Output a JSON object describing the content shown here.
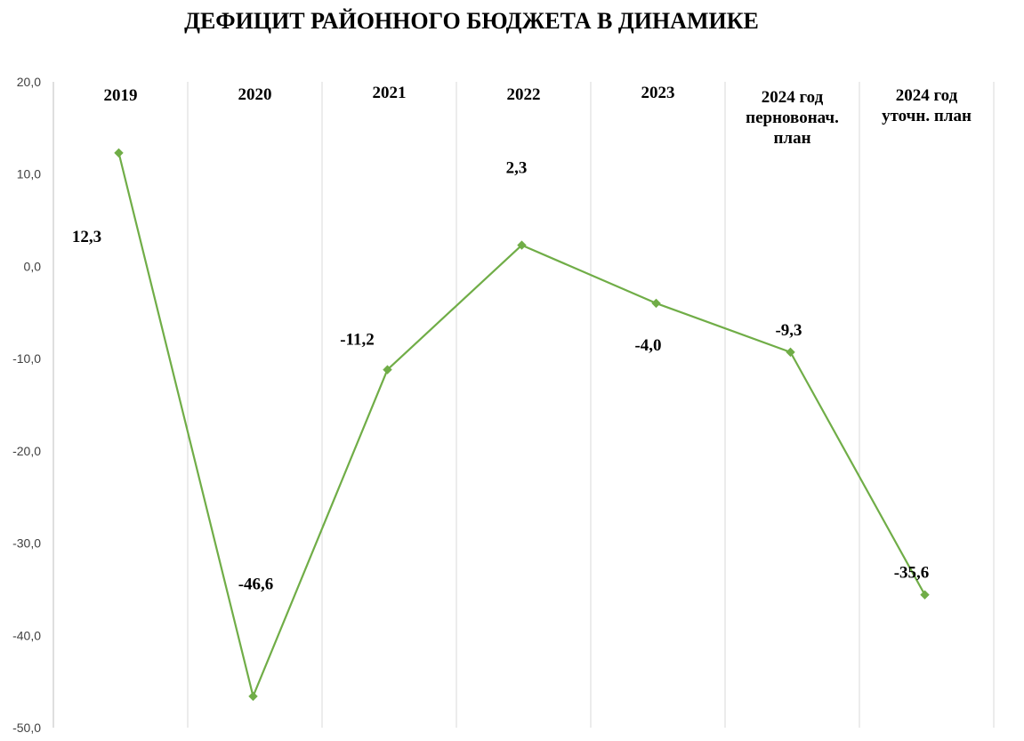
{
  "chart_data": {
    "type": "line",
    "title": "ДЕФИЦИТ РАЙОННОГО БЮДЖЕТА В ДИНАМИКЕ",
    "categories": [
      [
        "2019"
      ],
      [
        "2020"
      ],
      [
        "2021"
      ],
      [
        "2022"
      ],
      [
        "2023"
      ],
      [
        "2024 год",
        "перновонач.",
        "план"
      ],
      [
        "2024 год",
        "уточн. план"
      ]
    ],
    "series": [
      {
        "values": [
          12.3,
          -46.6,
          -11.2,
          2.3,
          -4.0,
          -9.3,
          -35.6
        ],
        "data_labels": [
          "12,3",
          "-46,6",
          "-11,2",
          "2,3",
          "-4,0",
          "-9,3",
          "-35,6"
        ],
        "color": "#70ad47"
      }
    ],
    "ylim": [
      -50,
      20
    ],
    "y_ticks": [
      20,
      10,
      0,
      -10,
      -20,
      -30,
      -40,
      -50
    ],
    "y_tick_labels": [
      "20,0",
      "10,0",
      "0,0",
      "-10,0",
      "-20,0",
      "-30,0",
      "-40,0",
      "-50,0"
    ],
    "xlabel": "",
    "ylabel": "",
    "grid": "vertical",
    "legend": "none"
  }
}
